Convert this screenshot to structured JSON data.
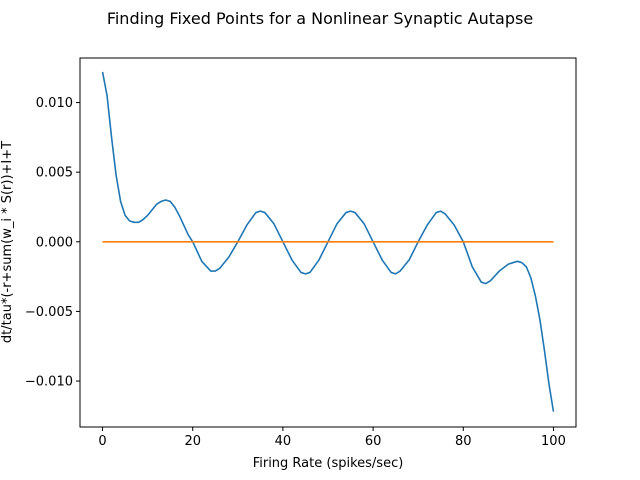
{
  "chart_data": {
    "type": "line",
    "title": "Finding Fixed Points for a Nonlinear Synaptic Autapse",
    "xlabel": "Firing Rate (spikes/sec)",
    "ylabel": "dt/tau*(-r+sum(w_i * S(r))+I+T",
    "xlim": [
      -5,
      105
    ],
    "ylim": [
      -0.0133,
      0.0132
    ],
    "xticks": [
      0,
      20,
      40,
      60,
      80,
      100
    ],
    "xtick_labels": [
      "0",
      "20",
      "40",
      "60",
      "80",
      "100"
    ],
    "yticks": [
      -0.01,
      -0.005,
      0.0,
      0.005,
      0.01
    ],
    "ytick_labels": [
      "−0.010",
      "−0.005",
      "0.000",
      "0.005",
      "0.010"
    ],
    "grid": false,
    "series": [
      {
        "color": "#1f77b4",
        "x": [
          0,
          1,
          2,
          3,
          4,
          5,
          6,
          7,
          8,
          9,
          10,
          11,
          12,
          13,
          14,
          15,
          16,
          17,
          18,
          19,
          20,
          22,
          24,
          25,
          26,
          28,
          30,
          32,
          34,
          35,
          36,
          38,
          40,
          42,
          44,
          45,
          46,
          48,
          50,
          52,
          54,
          55,
          56,
          58,
          60,
          62,
          64,
          65,
          66,
          68,
          70,
          72,
          74,
          75,
          76,
          78,
          80,
          82,
          84,
          85,
          86,
          88,
          90,
          91,
          92,
          93,
          94,
          95,
          96,
          97,
          98,
          99,
          100
        ],
        "y": [
          0.0122,
          0.0105,
          0.0075,
          0.0048,
          0.0029,
          0.0019,
          0.0015,
          0.0014,
          0.0014,
          0.0016,
          0.0019,
          0.0023,
          0.0027,
          0.0029,
          0.003,
          0.0029,
          0.0025,
          0.0019,
          0.0012,
          0.0005,
          0.0,
          -0.0014,
          -0.0021,
          -0.0021,
          -0.0019,
          -0.0011,
          0.0,
          0.0012,
          0.0021,
          0.0022,
          0.0021,
          0.0013,
          0.0,
          -0.0013,
          -0.0022,
          -0.0023,
          -0.0022,
          -0.0013,
          0.0,
          0.0013,
          0.0021,
          0.0022,
          0.0021,
          0.0013,
          0.0,
          -0.0013,
          -0.0022,
          -0.0023,
          -0.0021,
          -0.0013,
          0.0,
          0.0012,
          0.0021,
          0.0022,
          0.002,
          0.0012,
          0.0,
          -0.0018,
          -0.0029,
          -0.003,
          -0.0028,
          -0.0021,
          -0.0016,
          -0.0015,
          -0.0014,
          -0.0015,
          -0.0018,
          -0.0026,
          -0.0039,
          -0.0056,
          -0.0078,
          -0.0102,
          -0.0122
        ]
      },
      {
        "color": "#ff7f0e",
        "x": [
          0,
          100
        ],
        "y": [
          0,
          0
        ]
      }
    ]
  }
}
